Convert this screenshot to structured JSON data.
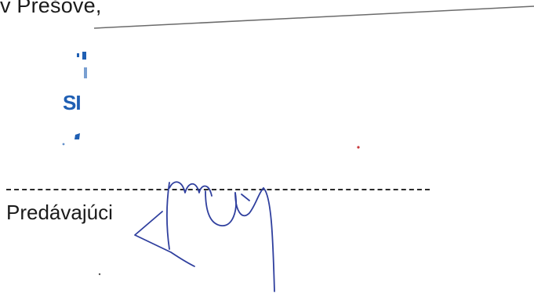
{
  "document": {
    "header_fragment": "v Prešove,",
    "stamp_text": "SI",
    "seller_label": "Predávajúci"
  },
  "colors": {
    "text": "#1b1b1b",
    "stamp": "#1f5fb3",
    "signature_ink": "#2f3f9e"
  },
  "icons": {
    "stamp": "stamp-seal-icon",
    "signature": "handwritten-signature-icon"
  }
}
